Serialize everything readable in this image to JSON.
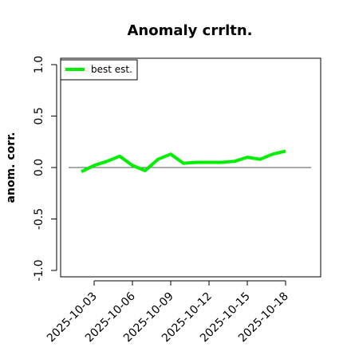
{
  "chart_data": {
    "type": "line",
    "title": "Anomaly crrltn.",
    "ylabel": "anom. corr.",
    "xlabel": "",
    "ylim": [
      -1.0,
      1.0
    ],
    "yticks": [
      {
        "value": -1.0,
        "label": "-1.0"
      },
      {
        "value": -0.5,
        "label": "-0.5"
      },
      {
        "value": 0.0,
        "label": "0.0"
      },
      {
        "value": 0.5,
        "label": "0.5"
      },
      {
        "value": 1.0,
        "label": "1.0"
      }
    ],
    "xlim": [
      "2025-10-01",
      "2025-10-20"
    ],
    "xticks": [
      "2025-10-03",
      "2025-10-06",
      "2025-10-09",
      "2025-10-12",
      "2025-10-15",
      "2025-10-18"
    ],
    "reference_line": 0.0,
    "legend": {
      "position": "top-left"
    },
    "series": [
      {
        "name": "best est.",
        "color": "#00ee00",
        "x": [
          "2025-10-02",
          "2025-10-03",
          "2025-10-04",
          "2025-10-05",
          "2025-10-06",
          "2025-10-07",
          "2025-10-08",
          "2025-10-09",
          "2025-10-10",
          "2025-10-11",
          "2025-10-12",
          "2025-10-13",
          "2025-10-14",
          "2025-10-15",
          "2025-10-16",
          "2025-10-17",
          "2025-10-18"
        ],
        "values": [
          -0.04,
          0.02,
          0.06,
          0.11,
          0.02,
          -0.03,
          0.08,
          0.13,
          0.04,
          0.05,
          0.05,
          0.05,
          0.06,
          0.1,
          0.08,
          0.13,
          0.16
        ]
      }
    ]
  }
}
